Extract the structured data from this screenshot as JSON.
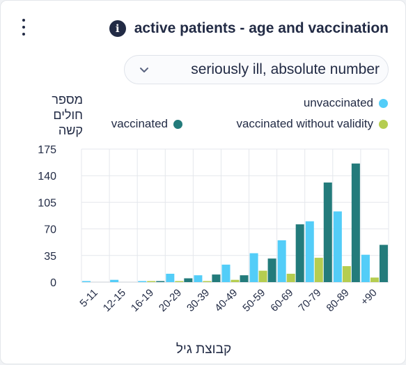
{
  "header": {
    "title": "active patients - age and vaccination",
    "info_glyph": "i"
  },
  "menu_icon": "kebab-menu-icon",
  "filter": {
    "selected": "seriously ill, absolute number",
    "icon": "chevron-down-icon"
  },
  "colors": {
    "unvaccinated": "#53cdf8",
    "vaccinated_without_validity": "#b5cd50",
    "vaccinated": "#237b7b"
  },
  "chart_data": {
    "type": "bar",
    "ylabel": "מספר\nחולים\nקשה",
    "xlabel": "קבוצת גיל",
    "categories": [
      "5-11",
      "12-15",
      "16-19",
      "20-29",
      "30-39",
      "40-49",
      "50-59",
      "60-69",
      "70-79",
      "80-89",
      "+90"
    ],
    "ylim": [
      0,
      175
    ],
    "yticks": [
      0,
      35,
      70,
      105,
      140,
      175
    ],
    "grid": true,
    "legend_position": "top-right",
    "series": [
      {
        "name": "unvaccinated",
        "color": "#53cdf8",
        "values": [
          1,
          3,
          1,
          11,
          9,
          23,
          38,
          55,
          80,
          93,
          36
        ]
      },
      {
        "name": "vaccinated without validity",
        "color": "#b5cd50",
        "values": [
          0,
          0,
          1,
          1,
          1,
          3,
          15,
          11,
          32,
          21,
          6
        ]
      },
      {
        "name": "vaccinated",
        "color": "#237b7b",
        "values": [
          0,
          0,
          1,
          5,
          10,
          9,
          31,
          76,
          131,
          156,
          49
        ]
      }
    ]
  }
}
